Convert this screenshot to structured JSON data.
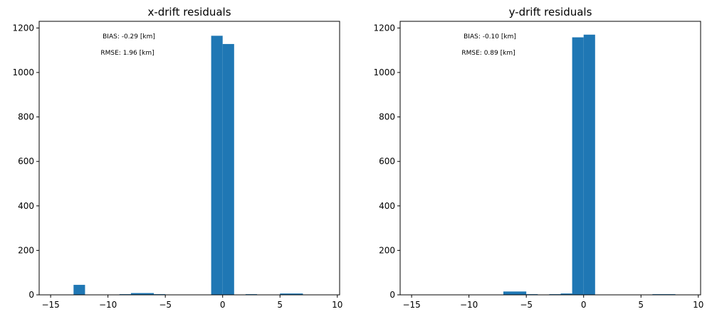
{
  "figure": {
    "panels": [
      {
        "title": "x-drift residuals",
        "annotations": [
          "BIAS: -0.29 [km]",
          "RMSE: 1.96 [km]"
        ],
        "xticks": [
          -15,
          -10,
          -5,
          0,
          5,
          10
        ],
        "yticks": [
          0,
          200,
          400,
          600,
          800,
          1000,
          1200
        ]
      },
      {
        "title": "y-drift residuals",
        "annotations": [
          "BIAS: -0.10 [km]",
          "RMSE: 0.89 [km]"
        ],
        "xticks": [
          -15,
          -10,
          -5,
          0,
          5,
          10
        ],
        "yticks": [
          0,
          200,
          400,
          600,
          800,
          1000,
          1200
        ]
      }
    ]
  },
  "chart_data": [
    {
      "type": "bar",
      "title": "x-drift residuals",
      "xlabel": "",
      "ylabel": "",
      "xlim": [
        -16,
        10.2
      ],
      "ylim": [
        0,
        1230
      ],
      "grid": false,
      "bar_color": "#1f77b4",
      "bins": [
        {
          "x0": -13,
          "x1": -12,
          "value": 45
        },
        {
          "x0": -9,
          "x1": -8,
          "value": 3
        },
        {
          "x0": -8,
          "x1": -6,
          "value": 8
        },
        {
          "x0": -6,
          "x1": -5,
          "value": 3
        },
        {
          "x0": -1,
          "x1": 0,
          "value": 1165
        },
        {
          "x0": 0,
          "x1": 1,
          "value": 1128
        },
        {
          "x0": 2,
          "x1": 3,
          "value": 3
        },
        {
          "x0": 5,
          "x1": 7,
          "value": 6
        }
      ],
      "annotations": [
        "BIAS: -0.29 [km]",
        "RMSE: 1.96 [km]"
      ]
    },
    {
      "type": "bar",
      "title": "y-drift residuals",
      "xlabel": "",
      "ylabel": "",
      "xlim": [
        -16,
        10.2
      ],
      "ylim": [
        0,
        1230
      ],
      "grid": false,
      "bar_color": "#1f77b4",
      "bins": [
        {
          "x0": -7,
          "x1": -5,
          "value": 15
        },
        {
          "x0": -5,
          "x1": -4,
          "value": 3
        },
        {
          "x0": -3,
          "x1": -2,
          "value": 3
        },
        {
          "x0": -2,
          "x1": -1,
          "value": 6
        },
        {
          "x0": -1,
          "x1": 0,
          "value": 1158
        },
        {
          "x0": 0,
          "x1": 1,
          "value": 1170
        },
        {
          "x0": 6,
          "x1": 8,
          "value": 3
        }
      ],
      "annotations": [
        "BIAS: -0.10 [km]",
        "RMSE: 0.89 [km]"
      ]
    }
  ]
}
